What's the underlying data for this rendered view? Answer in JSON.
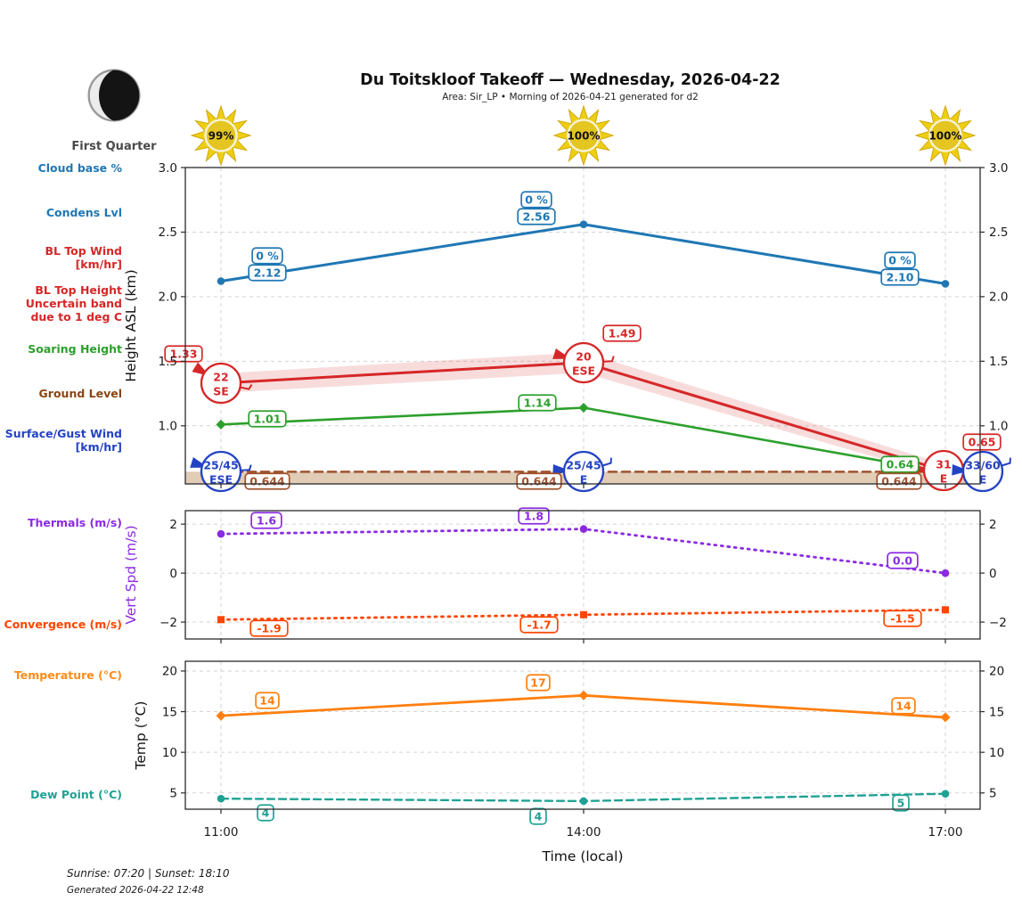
{
  "header": {
    "title": "Du Toitskloof Takeoff — Wednesday, 2026-04-22",
    "subtitle": "Area: Sir_LP • Morning of 2026-04-21 generated for d2"
  },
  "moon": {
    "phase_label": "First Quarter"
  },
  "suns": [
    {
      "pct": "99%"
    },
    {
      "pct": "100%"
    },
    {
      "pct": "100%"
    }
  ],
  "left_labels": [
    {
      "lines": [
        "Cloud base %"
      ],
      "color": "#1f77b4"
    },
    {
      "lines": [
        "Condens Lvl"
      ],
      "color": "#1f77b4"
    },
    {
      "lines": [
        "BL Top Wind",
        "[km/hr]"
      ],
      "color": "#d62728"
    },
    {
      "lines": [
        "BL Top Height",
        "Uncertain band",
        "due to 1 deg C"
      ],
      "color": "#d62728"
    },
    {
      "lines": [
        "Soaring Height"
      ],
      "color": "#2ca02c"
    },
    {
      "lines": [
        "Ground Level"
      ],
      "color": "#8b4513"
    },
    {
      "lines": [
        "Surface/Gust Wind",
        "[km/hr]"
      ],
      "color": "#2443c4"
    },
    {
      "lines": [
        "Thermals (m/s)"
      ],
      "color": "#8a2be2"
    },
    {
      "lines": [
        "Convergence (m/s)"
      ],
      "color": "#ff4500"
    },
    {
      "lines": [
        "Temperature (°C)"
      ],
      "color": "#ff8c1a"
    },
    {
      "lines": [
        "Dew Point (°C)"
      ],
      "color": "#1fa294"
    }
  ],
  "x_axis": {
    "label": "Time (local)",
    "ticks": [
      "11:00",
      "14:00",
      "17:00"
    ]
  },
  "footer": {
    "sun_times": "Sunrise: 07:20 | Sunset: 18:10",
    "generated": "Generated 2026-04-22 12:48"
  },
  "chart_data": [
    {
      "id": "height",
      "type": "line",
      "x": [
        "11:00",
        "14:00",
        "17:00"
      ],
      "ylabel": "Height ASL (km)",
      "ylim": [
        0.55,
        3.0
      ],
      "yticks": [
        1.0,
        1.5,
        2.0,
        2.5,
        3.0
      ],
      "ytick_labels": [
        "1.0",
        "1.5",
        "2.0",
        "2.5",
        "3.0"
      ],
      "grid": true,
      "series": [
        {
          "name": "Condens Lvl",
          "color": "#1f77b4",
          "style": "solid",
          "marker": "circle",
          "values": [
            2.12,
            2.56,
            2.1
          ],
          "point_labels": [
            "2.12",
            "2.56",
            "2.10"
          ],
          "extra_labels": [
            "0 %",
            "0 %",
            "0 %"
          ],
          "width": 3
        },
        {
          "name": "BL Top Height",
          "color": "#d62728",
          "style": "solid",
          "marker": "none",
          "values": [
            1.33,
            1.49,
            0.65
          ],
          "point_labels": [
            "1.33",
            "1.49",
            "0.65"
          ],
          "band": [
            0.075,
            0.08,
            0.05
          ],
          "band_opacity": 0.16,
          "width": 3
        },
        {
          "name": "Soaring Height",
          "color": "#2ca02c",
          "style": "solid",
          "marker": "diamond",
          "values": [
            1.01,
            1.14,
            0.64
          ],
          "point_labels": [
            "1.01",
            "1.14",
            "0.64"
          ],
          "width": 2.6
        },
        {
          "name": "Ground Level",
          "color": "#a0522d",
          "style": "dashed",
          "marker": "none",
          "values": [
            0.644,
            0.644,
            0.644
          ],
          "point_labels": [
            "0.644",
            "0.644",
            "0.644"
          ],
          "fill_to_bottom": true,
          "fill_color": "#c8a27a",
          "fill_opacity": 0.55,
          "width": 2.6
        }
      ],
      "wind_circles": [
        {
          "name": "BL Top Wind [km/hr]",
          "color": "#d62728",
          "at_value": true,
          "entries": [
            {
              "speed": "22",
              "dir": "SE"
            },
            {
              "speed": "20",
              "dir": "ESE"
            },
            {
              "speed": "31",
              "dir": "E"
            }
          ]
        },
        {
          "name": "Surface/Gust Wind [km/hr]",
          "color": "#2443c4",
          "at_value": false,
          "entries": [
            {
              "speed": "25/45",
              "dir": "ESE"
            },
            {
              "speed": "25/45",
              "dir": "E"
            },
            {
              "speed": "33/60",
              "dir": "E"
            }
          ]
        }
      ]
    },
    {
      "id": "vertspd",
      "type": "line",
      "x": [
        "11:00",
        "14:00",
        "17:00"
      ],
      "ylabel": "Vert Spd (m/s)",
      "ylabel_color": "#8a2be2",
      "ylim": [
        -2.69,
        2.55
      ],
      "yticks": [
        -2,
        0,
        2
      ],
      "ytick_labels": [
        "−2",
        "0",
        "2"
      ],
      "grid": true,
      "series": [
        {
          "name": "Thermals",
          "color": "#8a2be2",
          "style": "dotted",
          "marker": "circle",
          "values": [
            1.6,
            1.8,
            0.0
          ],
          "point_labels": [
            "1.6",
            "1.8",
            "0.0"
          ],
          "width": 2.8
        },
        {
          "name": "Convergence",
          "color": "#ff4500",
          "style": "dotted",
          "marker": "square",
          "values": [
            -1.9,
            -1.7,
            -1.5
          ],
          "point_labels": [
            "-1.9",
            "-1.7",
            "-1.5"
          ],
          "width": 2.8
        }
      ]
    },
    {
      "id": "temp",
      "type": "line",
      "x": [
        "11:00",
        "14:00",
        "17:00"
      ],
      "ylabel": "Temp (°C)",
      "ylim": [
        3.0,
        21.2
      ],
      "yticks": [
        5,
        10,
        15,
        20
      ],
      "ytick_labels": [
        "5",
        "10",
        "15",
        "20"
      ],
      "grid": true,
      "series": [
        {
          "name": "Temperature",
          "color": "#ff7f0e",
          "style": "solid",
          "marker": "diamond",
          "values": [
            14.5,
            17,
            14.3
          ],
          "point_labels": [
            "14",
            "17",
            "14"
          ],
          "width": 2.8
        },
        {
          "name": "Dew Point",
          "color": "#1fa294",
          "style": "longdash",
          "marker": "circle",
          "values": [
            4.3,
            4.0,
            4.9
          ],
          "point_labels": [
            "4",
            "4",
            "5"
          ],
          "width": 2.4
        }
      ]
    }
  ]
}
